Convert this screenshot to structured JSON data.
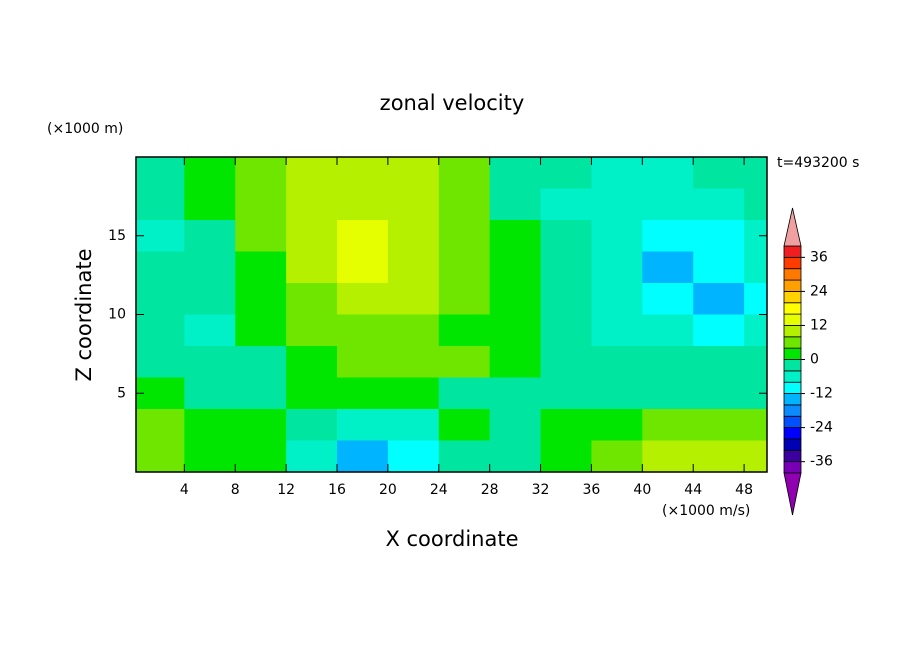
{
  "chart_data": {
    "type": "contour",
    "title": "zonal velocity",
    "x_label": "X coordinate",
    "y_label": "Z coordinate",
    "y_unit": "(×1000 m)",
    "value_unit": "(×1000 m/s)",
    "annotation": "t=493200 s",
    "xlim": [
      0.2,
      49.8
    ],
    "ylim": [
      0,
      20
    ],
    "xticks": [
      4,
      8,
      12,
      16,
      20,
      24,
      28,
      32,
      36,
      40,
      44,
      48
    ],
    "yticks": [
      5,
      10,
      15
    ],
    "x": [
      2,
      6,
      10,
      14,
      18,
      22,
      26,
      30,
      34,
      38,
      42,
      46,
      50
    ],
    "z": [
      19,
      17,
      15,
      13,
      11,
      9,
      7,
      5,
      3,
      1
    ],
    "values": [
      [
        -2,
        2,
        6,
        10,
        10,
        10,
        6,
        -2,
        -2,
        -6,
        -6,
        -2,
        -2
      ],
      [
        -2,
        2,
        6,
        10,
        10,
        10,
        6,
        -2,
        -6,
        -6,
        -6,
        -6,
        -2
      ],
      [
        -6,
        -2,
        6,
        10,
        14,
        10,
        6,
        2,
        -2,
        -6,
        -10,
        -10,
        -6
      ],
      [
        -2,
        -2,
        2,
        10,
        14,
        10,
        6,
        2,
        -2,
        -6,
        -14,
        -10,
        -6
      ],
      [
        -2,
        -2,
        2,
        6,
        10,
        10,
        6,
        2,
        -2,
        -6,
        -10,
        -14,
        -10
      ],
      [
        -2,
        -6,
        2,
        6,
        6,
        6,
        2,
        2,
        -2,
        -6,
        -6,
        -10,
        -6
      ],
      [
        -2,
        -2,
        -2,
        2,
        6,
        6,
        6,
        2,
        -2,
        -2,
        -2,
        -2,
        -2
      ],
      [
        2,
        -2,
        -2,
        2,
        2,
        2,
        -2,
        -2,
        -2,
        -2,
        -2,
        -2,
        -2
      ],
      [
        6,
        2,
        2,
        -2,
        -6,
        -6,
        2,
        -2,
        2,
        2,
        6,
        6,
        6
      ],
      [
        6,
        2,
        2,
        -6,
        -14,
        -10,
        -2,
        -2,
        2,
        6,
        10,
        10,
        10
      ]
    ],
    "levels": [
      -40,
      -36,
      -32,
      -28,
      -24,
      -20,
      -16,
      -12,
      -8,
      -4,
      0,
      4,
      8,
      12,
      16,
      20,
      24,
      28,
      32,
      36,
      40
    ],
    "colors": [
      "#7800b4",
      "#3c00a0",
      "#0000b4",
      "#0000ff",
      "#0050ff",
      "#0a8cff",
      "#00b4ff",
      "#00ffff",
      "#00f0c8",
      "#00e6a0",
      "#00e600",
      "#6ee600",
      "#b4f000",
      "#e6ff00",
      "#ffff00",
      "#ffd200",
      "#ffa000",
      "#ff7800",
      "#ff3c00",
      "#f01e1e"
    ],
    "over_color": "#f0a0a0",
    "under_color": "#9000b0",
    "colorbar_ticks": [
      -36,
      -24,
      -12,
      0,
      12,
      24,
      36
    ]
  }
}
